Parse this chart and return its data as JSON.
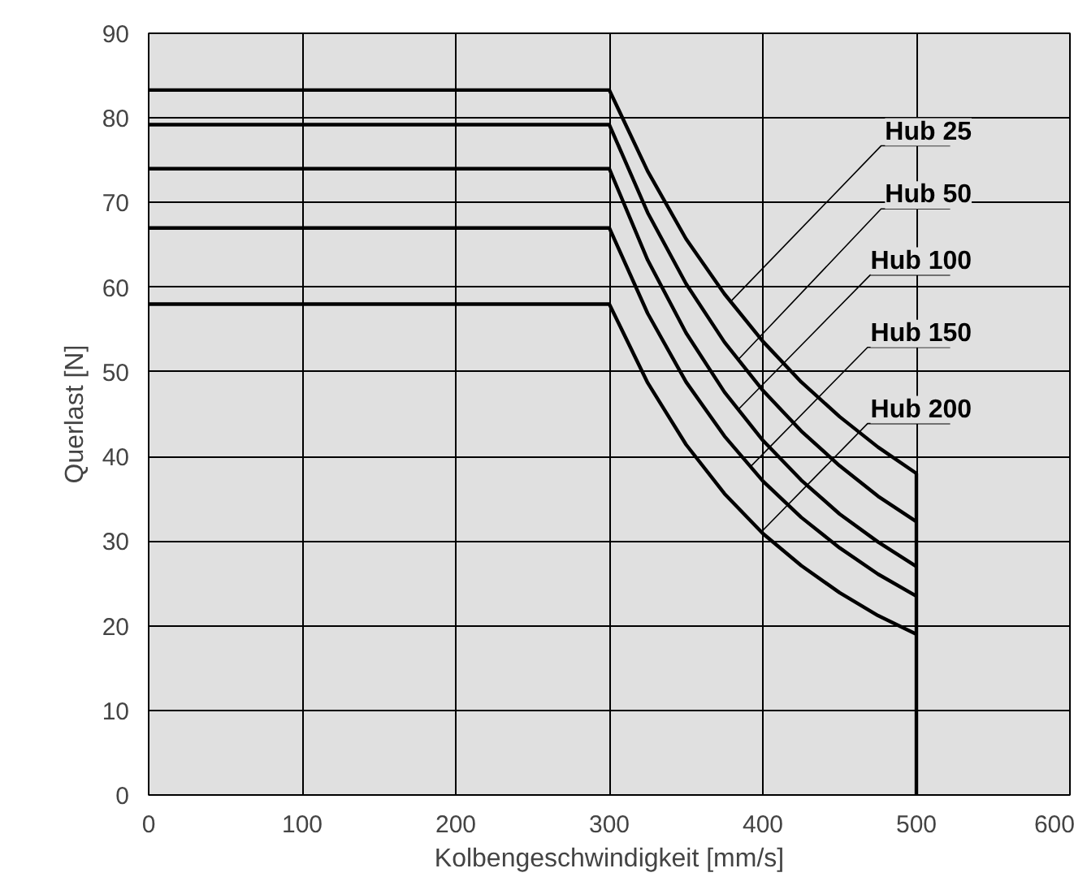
{
  "chart_data": {
    "type": "line",
    "xlabel": "Kolbengeschwindigkeit [mm/s]",
    "ylabel": "Querlast [N]",
    "xlim": [
      0,
      600
    ],
    "ylim": [
      0,
      90
    ],
    "xticks": [
      0,
      100,
      200,
      300,
      400,
      500,
      600
    ],
    "yticks": [
      0,
      10,
      20,
      30,
      40,
      50,
      60,
      70,
      80,
      90
    ],
    "grid": true,
    "marker": "none",
    "line_style": "solid",
    "series": [
      {
        "name": "Hub 25",
        "color": "#000000",
        "x": [
          0,
          300,
          325,
          350,
          375,
          400,
          425,
          450,
          475,
          500
        ],
        "values": [
          83.3,
          83.3,
          73.7,
          65.7,
          59.2,
          53.6,
          48.8,
          44.7,
          41.1,
          38
        ]
      },
      {
        "name": "Hub 50",
        "color": "#000000",
        "x": [
          0,
          300,
          325,
          350,
          375,
          400,
          425,
          450,
          475,
          500
        ],
        "values": [
          79.2,
          79.2,
          68.8,
          60.4,
          53.5,
          47.8,
          43.0,
          38.9,
          35.3,
          32.3
        ]
      },
      {
        "name": "Hub 100",
        "color": "#000000",
        "x": [
          0,
          300,
          325,
          350,
          375,
          400,
          425,
          450,
          475,
          500
        ],
        "values": [
          74,
          74,
          63.2,
          54.6,
          47.6,
          41.9,
          37.2,
          33.2,
          29.9,
          27
        ]
      },
      {
        "name": "Hub 150",
        "color": "#000000",
        "x": [
          0,
          300,
          325,
          350,
          375,
          400,
          425,
          450,
          475,
          500
        ],
        "values": [
          67,
          67,
          56.9,
          48.8,
          42.4,
          37.1,
          32.8,
          29.2,
          26.1,
          23.5
        ]
      },
      {
        "name": "Hub 200",
        "color": "#000000",
        "x": [
          0,
          300,
          325,
          350,
          375,
          400,
          425,
          450,
          475,
          500
        ],
        "values": [
          58,
          58,
          48.7,
          41.4,
          35.6,
          30.9,
          27.1,
          23.9,
          21.2,
          19
        ]
      },
      {
        "color": "#000000",
        "x": [
          500,
          500
        ],
        "values": [
          38,
          0
        ]
      }
    ]
  }
}
